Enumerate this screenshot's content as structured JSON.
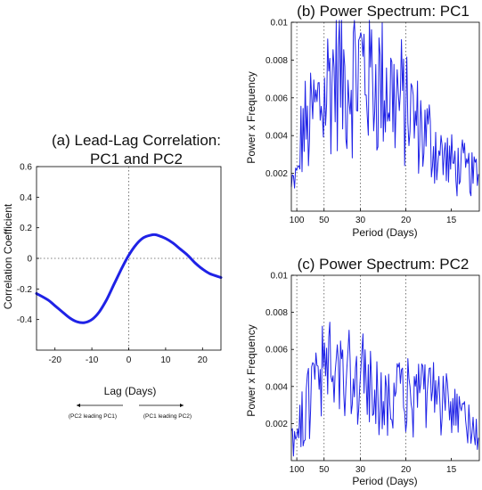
{
  "chart_data": [
    {
      "type": "line",
      "title_line1": "(a) Lead-Lag Correlation:",
      "title_line2": "PC1 and PC2",
      "xlabel": "Lag (Days)",
      "ylabel": "Correlation Coefficient",
      "xlim": [
        -25,
        25
      ],
      "ylim": [
        -0.6,
        0.6
      ],
      "xticks": [
        -20,
        -10,
        0,
        10,
        20
      ],
      "yticks": [
        -0.4,
        -0.2,
        0,
        0.2,
        0.4,
        0.6
      ],
      "ytick_labels": [
        "-0.4",
        "-0.2",
        "0",
        "0.2",
        "0.4",
        "0.6"
      ],
      "xtick_labels": [
        "-20",
        "-10",
        "0",
        "10",
        "20"
      ],
      "annotation_left": "(PC2 leading PC1)",
      "annotation_right": "(PC1 leading PC2)",
      "series": [
        {
          "color": "#1f22e6",
          "x": [
            -25,
            -22,
            -20,
            -18,
            -16,
            -14,
            -12,
            -10,
            -8,
            -6,
            -4,
            -2,
            0,
            2,
            4,
            6,
            7,
            8,
            10,
            12,
            14,
            16,
            18,
            20,
            22,
            25
          ],
          "y": [
            -0.23,
            -0.27,
            -0.31,
            -0.35,
            -0.39,
            -0.415,
            -0.42,
            -0.4,
            -0.35,
            -0.27,
            -0.17,
            -0.07,
            0.02,
            0.09,
            0.135,
            0.152,
            0.155,
            0.15,
            0.13,
            0.1,
            0.06,
            0.02,
            -0.03,
            -0.07,
            -0.1,
            -0.125
          ]
        }
      ]
    },
    {
      "type": "line",
      "title": "(b) Power Spectrum: PC1",
      "xlabel": "Period (Days)",
      "ylabel": "Power x Frequency",
      "ylim": [
        0,
        0.01
      ],
      "yticks": [
        0.002,
        0.004,
        0.006,
        0.008,
        0.01
      ],
      "ytick_labels": [
        "0.002",
        "0.004",
        "0.006",
        "0.008",
        "0.01"
      ],
      "xticks": [
        100,
        50,
        30,
        20,
        15
      ],
      "xtick_labels": [
        "100",
        "50",
        "30",
        "20",
        "15"
      ],
      "series": [
        {
          "color": "#1f22e6",
          "x": [
            125,
            115,
            105,
            95,
            88,
            80,
            72,
            65,
            58,
            52,
            48,
            44,
            40,
            37,
            34,
            31,
            29,
            27,
            25,
            23,
            21.5,
            20,
            18.5,
            17,
            16,
            15,
            14,
            13.5,
            13
          ],
          "y": [
            0.0012,
            0.0014,
            0.0016,
            0.002,
            0.0035,
            0.0045,
            0.0042,
            0.0048,
            0.0055,
            0.0058,
            0.0065,
            0.0072,
            0.0075,
            0.0068,
            0.0072,
            0.0075,
            0.0078,
            0.0072,
            0.0068,
            0.0065,
            0.006,
            0.0055,
            0.0045,
            0.0038,
            0.003,
            0.0025,
            0.0022,
            0.002,
            0.0018
          ]
        }
      ]
    },
    {
      "type": "line",
      "title": "(c) Power Spectrum: PC2",
      "xlabel": "Period (Days)",
      "ylabel": "Power x Frequency",
      "ylim": [
        0,
        0.01
      ],
      "yticks": [
        0.002,
        0.004,
        0.006,
        0.008,
        0.01
      ],
      "ytick_labels": [
        "0.002",
        "0.004",
        "0.006",
        "0.008",
        "0.01"
      ],
      "xticks": [
        100,
        50,
        30,
        20,
        15
      ],
      "xtick_labels": [
        "100",
        "50",
        "30",
        "20",
        "15"
      ],
      "series": [
        {
          "color": "#1f22e6",
          "x": [
            125,
            115,
            105,
            95,
            88,
            80,
            72,
            65,
            58,
            52,
            48,
            44,
            40,
            37,
            34,
            31,
            29,
            27,
            25,
            23,
            21.5,
            20,
            18.5,
            17,
            16,
            15,
            14,
            13.5,
            13
          ],
          "y": [
            0.0012,
            0.0013,
            0.0014,
            0.0016,
            0.0022,
            0.0027,
            0.0032,
            0.0036,
            0.0042,
            0.0046,
            0.0048,
            0.0047,
            0.0045,
            0.0046,
            0.0048,
            0.0045,
            0.0042,
            0.0038,
            0.0036,
            0.0034,
            0.0033,
            0.0035,
            0.0036,
            0.0034,
            0.003,
            0.0026,
            0.0023,
            0.0021,
            0.002
          ]
        }
      ]
    }
  ]
}
